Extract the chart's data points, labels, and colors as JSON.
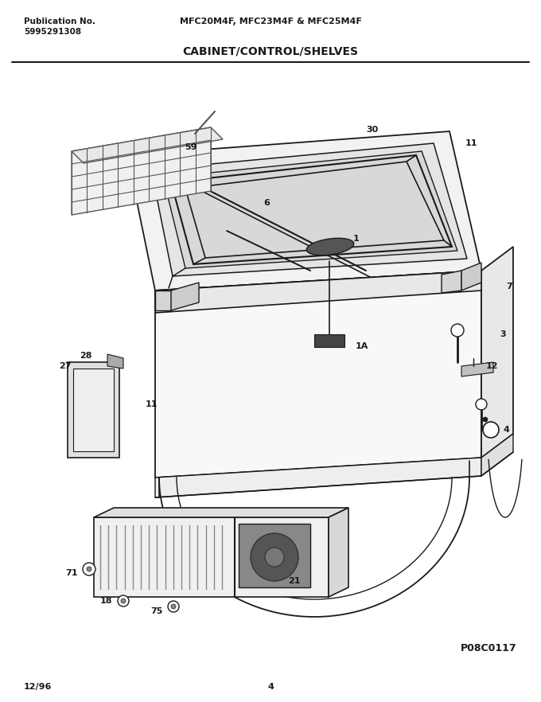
{
  "title_model": "MFC20M4F, MFC23M4F & MFC25M4F",
  "title_section": "CABINET/CONTROL/SHELVES",
  "pub_no_label": "Publication No.",
  "pub_no_value": "5995291308",
  "date": "12/96",
  "page": "4",
  "diagram_id": "P08C0117",
  "bg_color": "#ffffff",
  "line_color": "#1a1a1a",
  "figsize": [
    6.8,
    8.82
  ],
  "dpi": 100
}
